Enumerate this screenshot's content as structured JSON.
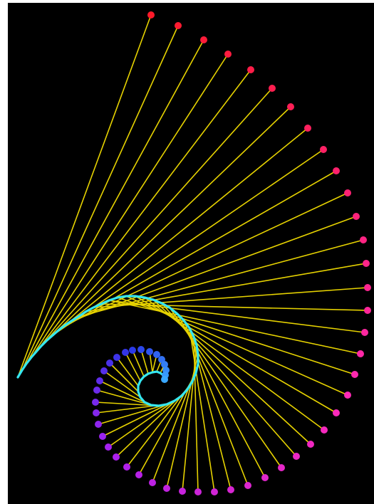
{
  "figure": {
    "description_type": "involute-spiral-string-art",
    "background_color": "#000000",
    "frame_color": "#ffffff",
    "line_color": "#e6d200",
    "curve_color": "#35e6f0",
    "spiral_end_color": "#3aa8ff",
    "dot_color_start": "#2a36e6",
    "dot_color_mid": "#a820f0",
    "dot_color_late": "#ff2ab8",
    "dot_color_end": "#ff1a2a",
    "string_count": 56
  }
}
